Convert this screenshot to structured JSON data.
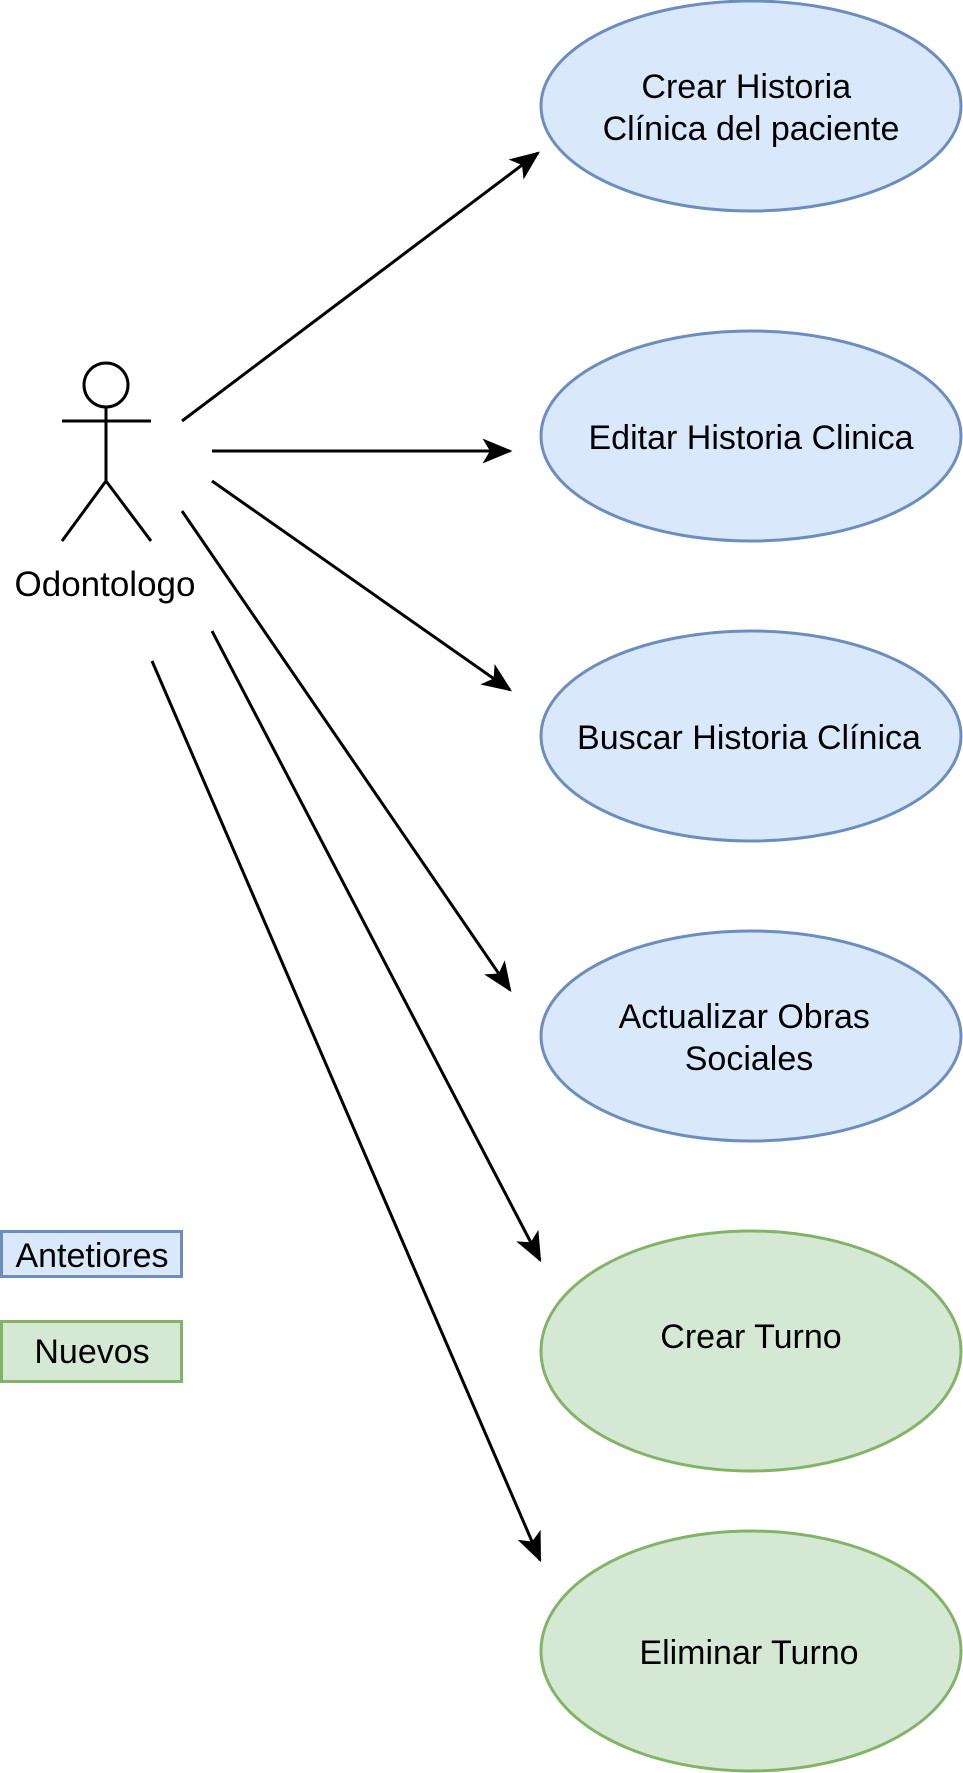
{
  "actor": {
    "name": "Odontologo"
  },
  "use_cases": [
    {
      "lines": [
        "Crear Historia",
        "Clínica del paciente"
      ],
      "group": "old"
    },
    {
      "lines": [
        "Editar Historia Clinica"
      ],
      "group": "old"
    },
    {
      "lines": [
        "Buscar Historia Clínica"
      ],
      "group": "old"
    },
    {
      "lines": [
        "Actualizar Obras",
        "Sociales"
      ],
      "group": "old"
    },
    {
      "lines": [
        "Crear Turno"
      ],
      "group": "new"
    },
    {
      "lines": [
        "Eliminar Turno"
      ],
      "group": "new"
    }
  ],
  "legend": {
    "old_label": "Antetiores",
    "new_label": "Nuevos"
  },
  "colors": {
    "old_fill": "#dae8fc",
    "old_stroke": "#6c8ebf",
    "new_fill": "#d5e8d4",
    "new_stroke": "#82b366",
    "line": "#000000"
  }
}
